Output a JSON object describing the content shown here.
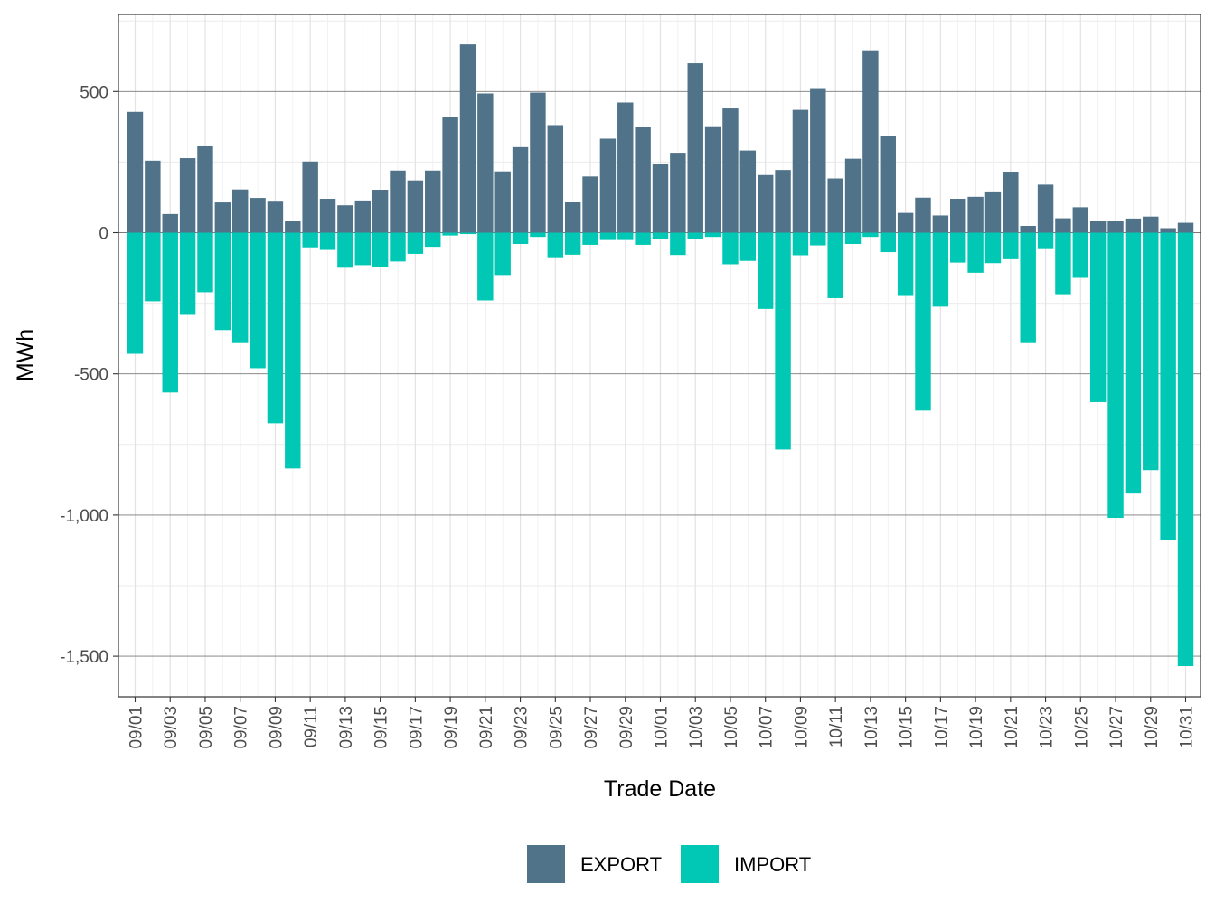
{
  "chart_data": {
    "type": "bar",
    "stacking": "diverging",
    "title": "",
    "xlabel": "Trade Date",
    "ylabel": "MWh",
    "ylim": [
      -1640,
      780
    ],
    "y_ticks": [
      500,
      0,
      -500,
      -1000,
      -1500
    ],
    "y_tick_labels": [
      "500",
      "0",
      "-500",
      "-1,000",
      "-1,500"
    ],
    "grid": true,
    "legend_position": "bottom",
    "categories": [
      "09/01",
      "09/02",
      "09/03",
      "09/04",
      "09/05",
      "09/06",
      "09/07",
      "09/08",
      "09/09",
      "09/10",
      "09/11",
      "09/12",
      "09/13",
      "09/14",
      "09/15",
      "09/16",
      "09/17",
      "09/18",
      "09/19",
      "09/20",
      "09/21",
      "09/22",
      "09/23",
      "09/24",
      "09/25",
      "09/26",
      "09/27",
      "09/28",
      "09/29",
      "09/30",
      "10/01",
      "10/02",
      "10/03",
      "10/04",
      "10/05",
      "10/06",
      "10/07",
      "10/08",
      "10/09",
      "10/10",
      "10/11",
      "10/12",
      "10/13",
      "10/14",
      "10/15",
      "10/16",
      "10/17",
      "10/18",
      "10/19",
      "10/20",
      "10/21",
      "10/22",
      "10/23",
      "10/24",
      "10/25",
      "10/26",
      "10/27",
      "10/28",
      "10/29",
      "10/30",
      "10/31"
    ],
    "x_tick_labels": [
      "09/01",
      "09/03",
      "09/05",
      "09/07",
      "09/09",
      "09/11",
      "09/13",
      "09/15",
      "09/17",
      "09/19",
      "09/21",
      "09/23",
      "09/25",
      "09/27",
      "09/29",
      "10/01",
      "10/03",
      "10/05",
      "10/07",
      "10/09",
      "10/11",
      "10/13",
      "10/15",
      "10/17",
      "10/19",
      "10/21",
      "10/23",
      "10/25",
      "10/27",
      "10/29",
      "10/31"
    ],
    "series": [
      {
        "name": "EXPORT",
        "color": "#50738a",
        "values": [
          428,
          255,
          66,
          264,
          309,
          107,
          153,
          123,
          113,
          43,
          252,
          120,
          97,
          114,
          152,
          220,
          185,
          220,
          410,
          667,
          493,
          217,
          303,
          496,
          381,
          108,
          199,
          333,
          461,
          373,
          243,
          283,
          600,
          377,
          440,
          291,
          204,
          222,
          435,
          512,
          192,
          262,
          646,
          342,
          70,
          124,
          61,
          120,
          127,
          146,
          216,
          24,
          170,
          51,
          90,
          41,
          41,
          50,
          57,
          16,
          35
        ]
      },
      {
        "name": "IMPORT",
        "color": "#00c8b4",
        "values": [
          -429,
          -243,
          -566,
          -288,
          -211,
          -345,
          -388,
          -480,
          -675,
          -835,
          -52,
          -61,
          -121,
          -115,
          -120,
          -102,
          -75,
          -50,
          -10,
          -5,
          -240,
          -150,
          -40,
          -15,
          -87,
          -78,
          -43,
          -26,
          -26,
          -43,
          -24,
          -79,
          -23,
          -15,
          -112,
          -100,
          -270,
          -768,
          -80,
          -45,
          -232,
          -40,
          -15,
          -69,
          -221,
          -630,
          -262,
          -106,
          -142,
          -108,
          -94,
          -388,
          -55,
          -218,
          -160,
          -600,
          -1010,
          -924,
          -841,
          -1090,
          -1535
        ]
      }
    ]
  }
}
